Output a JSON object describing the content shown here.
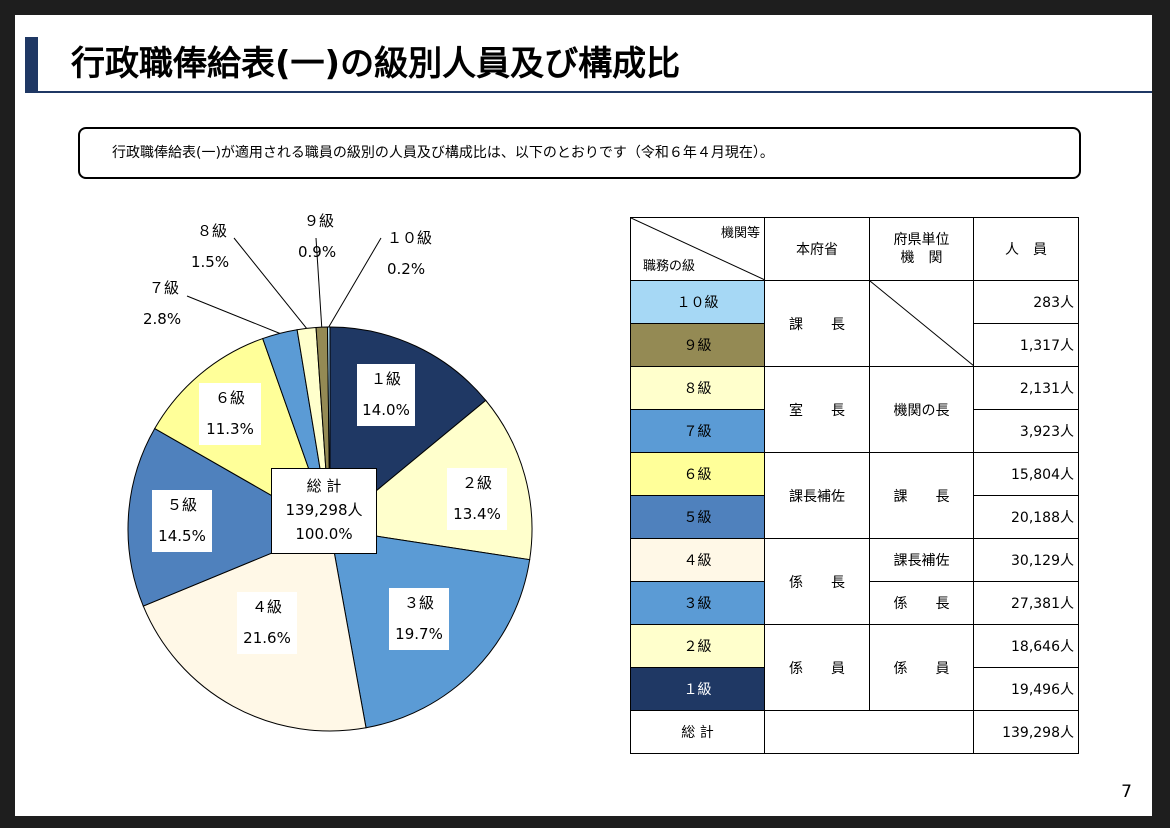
{
  "title": "行政職俸給表(一)の級別人員及び構成比",
  "intro": "行政職俸給表(一)が適用される職員の級別の人員及び構成比は、以下のとおりです（令和６年４月現在）。",
  "chart_data": {
    "type": "pie",
    "slices": [
      {
        "label": "１級",
        "percent_label": "14.0%",
        "value": 14.0,
        "color": "#1f3864"
      },
      {
        "label": "２級",
        "percent_label": "13.4%",
        "value": 13.4,
        "color": "#ffffcc"
      },
      {
        "label": "３級",
        "percent_label": "19.7%",
        "value": 19.7,
        "color": "#5b9bd5"
      },
      {
        "label": "４級",
        "percent_label": "21.6%",
        "value": 21.6,
        "color": "#fff8e7"
      },
      {
        "label": "５級",
        "percent_label": "14.5%",
        "value": 14.5,
        "color": "#4f81bd"
      },
      {
        "label": "６級",
        "percent_label": "11.3%",
        "value": 11.3,
        "color": "#ffff99"
      },
      {
        "label": "７級",
        "percent_label": "2.8%",
        "value": 2.8,
        "color": "#5b9bd5"
      },
      {
        "label": "８級",
        "percent_label": "1.5%",
        "value": 1.5,
        "color": "#ffffcc"
      },
      {
        "label": "９級",
        "percent_label": "0.9%",
        "value": 0.9,
        "color": "#948a54"
      },
      {
        "label": "１０級",
        "percent_label": "0.2%",
        "value": 0.2,
        "color": "#a6d8f5"
      }
    ],
    "total": {
      "label": "総 計",
      "count": "139,298人",
      "percent": "100.0%"
    }
  },
  "table": {
    "header": {
      "corner_top": "機関等",
      "corner_bottom": "職務の級",
      "col_honfusho": "本府省",
      "col_fuken_line1": "府県単位",
      "col_fuken_line2": "機　関",
      "col_count": "人　員"
    },
    "rows": [
      {
        "grade": "１０級",
        "count": "283人",
        "color": "#a6d8f5"
      },
      {
        "grade": "９級",
        "count": "1,317人",
        "color": "#948a54"
      },
      {
        "grade": "８級",
        "count": "2,131人",
        "color": "#ffffcc"
      },
      {
        "grade": "７級",
        "count": "3,923人",
        "color": "#5b9bd5"
      },
      {
        "grade": "６級",
        "count": "15,804人",
        "color": "#ffff99"
      },
      {
        "grade": "５級",
        "count": "20,188人",
        "color": "#4f81bd"
      },
      {
        "grade": "４級",
        "count": "30,129人",
        "color": "#fff8e7"
      },
      {
        "grade": "３級",
        "count": "27,381人",
        "color": "#5b9bd5"
      },
      {
        "grade": "２級",
        "count": "18,646人",
        "color": "#ffffcc"
      },
      {
        "grade": "１級",
        "count": "19,496人",
        "color": "#1f3864"
      }
    ],
    "honfusho": [
      "課　　長",
      "室　　長",
      "課長補佐",
      "係　　長",
      "係　　員"
    ],
    "fuken": {
      "g8_7": "機関の長",
      "g6_5": "課　　長",
      "g4": "課長補佐",
      "g3": "係　　長",
      "g2_1": "係　　員"
    },
    "total_label": "総 計",
    "total_count": "139,298人"
  },
  "page_number": "7"
}
